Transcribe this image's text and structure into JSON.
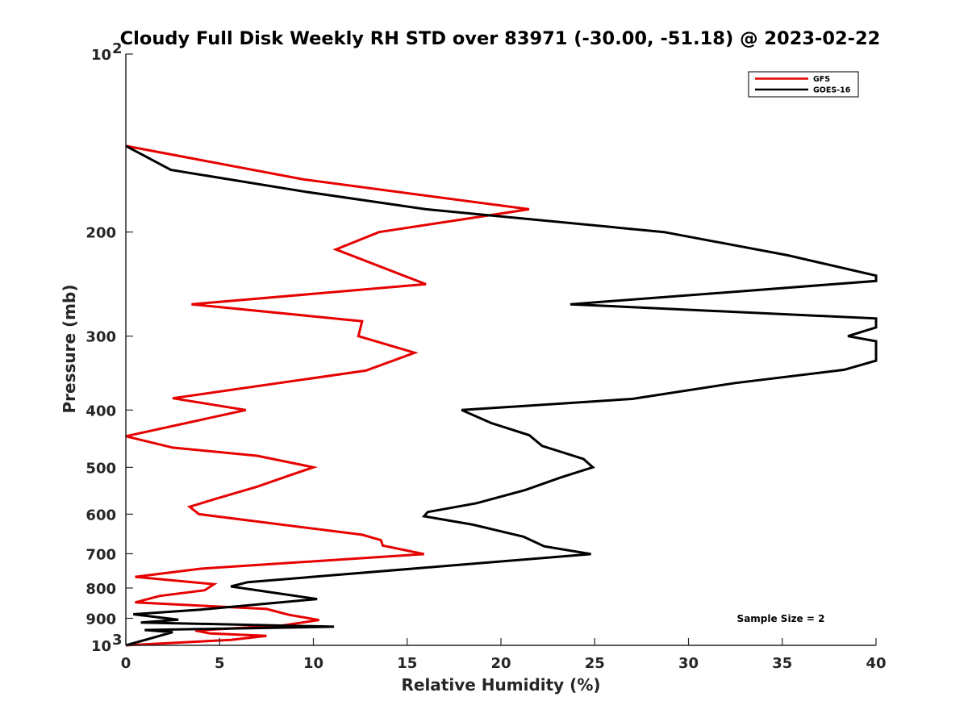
{
  "chart_data": {
    "type": "line",
    "title": "Cloudy Full Disk Weekly RH STD over 83971 (-30.00, -51.18) @ 2023-02-22",
    "xlabel": "Relative Humidity (%)",
    "ylabel": "Pressure (mb)",
    "xlim": [
      0,
      40
    ],
    "ylim": [
      100,
      1000
    ],
    "yscale": "log",
    "y_reversed": true,
    "grid": false,
    "legend_position": "top-right",
    "x_ticks": [
      0,
      5,
      10,
      15,
      20,
      25,
      30,
      35,
      40
    ],
    "x_tick_labels": [
      "0",
      "5",
      "10",
      "15",
      "20",
      "25",
      "30",
      "35",
      "40"
    ],
    "y_ticks": [
      100,
      200,
      300,
      400,
      500,
      600,
      700,
      800,
      900,
      1000
    ],
    "y_tick_labels": [
      {
        "base": "10",
        "exp": "2"
      },
      {
        "base": "200",
        "exp": ""
      },
      {
        "base": "300",
        "exp": ""
      },
      {
        "base": "400",
        "exp": ""
      },
      {
        "base": "500",
        "exp": ""
      },
      {
        "base": "600",
        "exp": ""
      },
      {
        "base": "700",
        "exp": ""
      },
      {
        "base": "800",
        "exp": ""
      },
      {
        "base": "900",
        "exp": ""
      },
      {
        "base": "10",
        "exp": "3"
      }
    ],
    "series": [
      {
        "name": "GFS",
        "color": "#e60000",
        "points": [
          [
            0.0,
            143
          ],
          [
            9.5,
            163
          ],
          [
            21.5,
            183
          ],
          [
            13.5,
            200
          ],
          [
            11.2,
            214
          ],
          [
            16.0,
            245
          ],
          [
            3.5,
            265
          ],
          [
            12.6,
            283
          ],
          [
            12.4,
            300
          ],
          [
            15.4,
            320
          ],
          [
            12.8,
            343
          ],
          [
            2.5,
            382
          ],
          [
            6.4,
            400
          ],
          [
            0.0,
            443
          ],
          [
            2.5,
            463
          ],
          [
            7.0,
            478
          ],
          [
            10.0,
            500
          ],
          [
            8.5,
            519
          ],
          [
            7.0,
            539
          ],
          [
            4.8,
            565
          ],
          [
            3.4,
            583
          ],
          [
            3.9,
            600
          ],
          [
            12.6,
            650
          ],
          [
            13.6,
            664
          ],
          [
            13.7,
            678
          ],
          [
            15.9,
            701
          ],
          [
            4.0,
            742
          ],
          [
            0.5,
            766
          ],
          [
            4.7,
            788
          ],
          [
            4.2,
            807
          ],
          [
            1.8,
            825
          ],
          [
            0.5,
            846
          ],
          [
            7.5,
            868
          ],
          [
            8.7,
            888
          ],
          [
            10.3,
            906
          ],
          [
            8.4,
            925
          ],
          [
            3.7,
            944
          ],
          [
            4.5,
            955
          ],
          [
            7.5,
            964
          ],
          [
            5.6,
            979
          ],
          [
            0.0,
            1000
          ]
        ]
      },
      {
        "name": "GOES-16",
        "color": "#000000",
        "points": [
          [
            0.0,
            143
          ],
          [
            2.4,
            157
          ],
          [
            9.6,
            171
          ],
          [
            16.0,
            183
          ],
          [
            28.7,
            200
          ],
          [
            35.3,
            219
          ],
          [
            40.0,
            237
          ],
          [
            40.0,
            242
          ],
          [
            23.7,
            265
          ],
          [
            40.0,
            280
          ],
          [
            40.0,
            290
          ],
          [
            38.5,
            300
          ],
          [
            40.0,
            306
          ],
          [
            40.0,
            330
          ],
          [
            38.3,
            342
          ],
          [
            32.5,
            360
          ],
          [
            27.0,
            383
          ],
          [
            17.9,
            400
          ],
          [
            19.5,
            421
          ],
          [
            21.5,
            441
          ],
          [
            22.2,
            460
          ],
          [
            24.4,
            484
          ],
          [
            24.9,
            500
          ],
          [
            23.2,
            520
          ],
          [
            21.3,
            546
          ],
          [
            18.7,
            575
          ],
          [
            16.1,
            595
          ],
          [
            15.9,
            605
          ],
          [
            18.5,
            625
          ],
          [
            21.2,
            655
          ],
          [
            22.3,
            680
          ],
          [
            24.8,
            701
          ],
          [
            6.5,
            782
          ],
          [
            5.6,
            795
          ],
          [
            10.2,
            835
          ],
          [
            4.0,
            870
          ],
          [
            0.4,
            886
          ],
          [
            2.8,
            905
          ],
          [
            0.8,
            915
          ],
          [
            11.1,
            930
          ],
          [
            1.0,
            942
          ],
          [
            2.5,
            950
          ],
          [
            0.0,
            1000
          ]
        ]
      }
    ],
    "annotations": [
      {
        "text": "Sample Size = 2"
      }
    ]
  }
}
